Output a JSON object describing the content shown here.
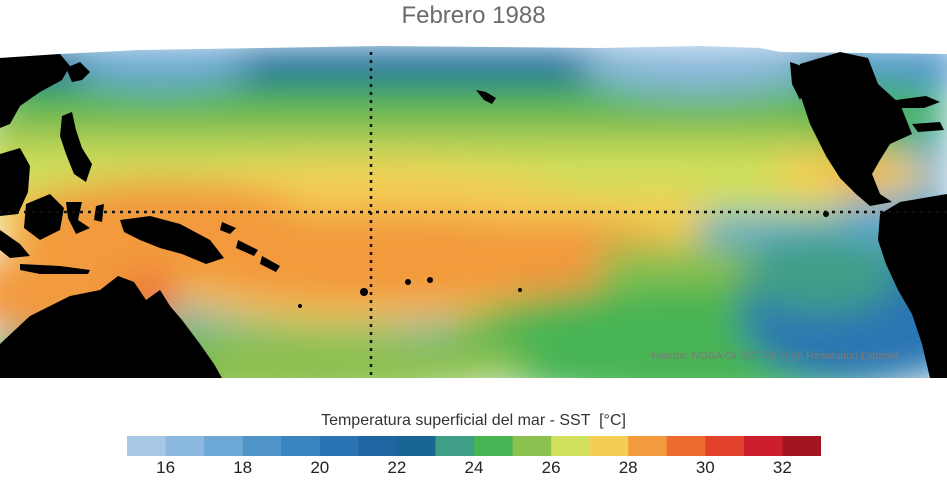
{
  "title": "Febrero 1988",
  "colorbar": {
    "label": "Temperatura superficial del mar - SST",
    "unit": "[°C]",
    "ticks": [
      "16",
      "18",
      "20",
      "22",
      "24",
      "26",
      "28",
      "30",
      "32"
    ],
    "range": [
      15,
      33
    ],
    "colors": [
      "#a6c8e4",
      "#8ab8de",
      "#6ea8d6",
      "#4f95ca",
      "#3a85c0",
      "#2a74b3",
      "#2066a2",
      "#196596",
      "#3f9f86",
      "#46b453",
      "#8cc04f",
      "#d0df5c",
      "#f4cd55",
      "#f29a3d",
      "#ee6b2f",
      "#e2412b",
      "#cc1e2c",
      "#a3161f"
    ]
  },
  "map": {
    "region": "Tropical Pacific Ocean",
    "colors": {
      "land": "#000000",
      "missing": "#ffffff",
      "reference_lines": "#111111"
    }
  },
  "source_note": "Fuente: NOAA OI SST V2 High Resolution Dataset"
}
